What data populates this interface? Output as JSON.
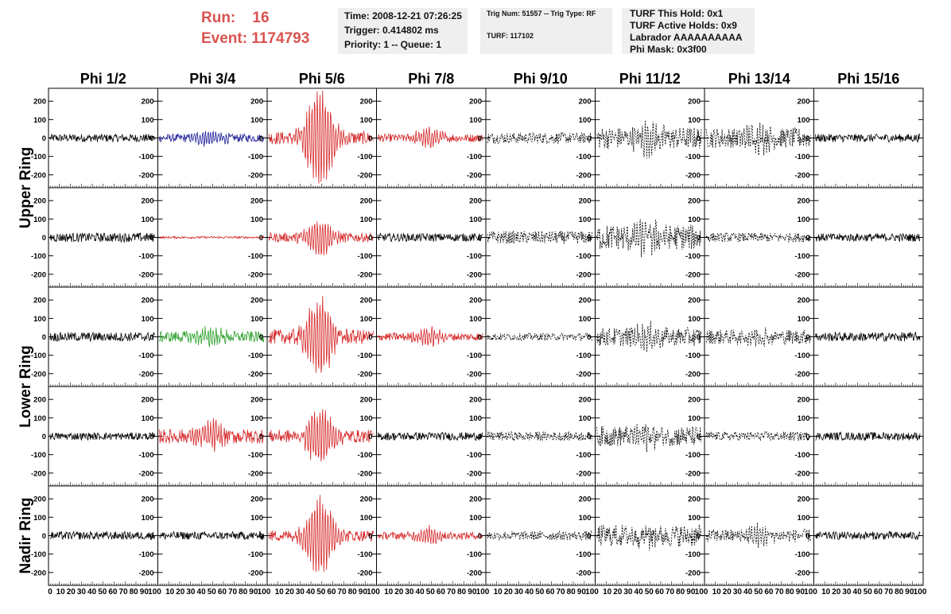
{
  "header": {
    "run_label": "Run:    16",
    "event_label": "Event: 1174793"
  },
  "info_box_1": {
    "time": "Time: 2008-12-21 07:26:25",
    "trigger": "Trigger: 0.414802 ms",
    "priority": "Priority: 1 -- Queue: 1"
  },
  "info_box_2": {
    "trig": "Trig Num: 51557 -- Trig Type: RF",
    "turf": "TURF: 117102"
  },
  "info_box_3": {
    "hold": "TURF This Hold: 0x1",
    "active": "TURF Active Holds: 0x9",
    "labrador": "Labrador AAAAAAAAAA",
    "mask": "Phi Mask: 0x3f00"
  },
  "chart_data": {
    "type": "line",
    "columns": [
      "Phi 1/2",
      "Phi 3/4",
      "Phi 5/6",
      "Phi 7/8",
      "Phi 9/10",
      "Phi 11/12",
      "Phi 13/14",
      "Phi 15/16"
    ],
    "row_groups": [
      "Upper Ring",
      "Lower Ring",
      "Nadir Ring"
    ],
    "rows": 5,
    "ylim": [
      -270,
      270
    ],
    "yticks": [
      -200,
      -100,
      0,
      100,
      200
    ],
    "xlim": [
      0,
      100
    ],
    "xtick_labels": [
      "0",
      "10",
      "20",
      "30",
      "40",
      "50",
      "60",
      "70",
      "80",
      "90",
      "100"
    ],
    "colors": {
      "black": "#000000",
      "red": "#d62728",
      "blue": "#1f1f9a",
      "green": "#2ca02c"
    },
    "panels": [
      [
        {
          "color": "black",
          "amp": 22,
          "style": "solid",
          "burst": 0
        },
        {
          "color": "blue",
          "amp": 22,
          "style": "solid",
          "burst": 40
        },
        {
          "color": "red",
          "amp": 35,
          "style": "solid",
          "burst": 250
        },
        {
          "color": "red",
          "amp": 22,
          "style": "solid",
          "burst": 45
        },
        {
          "color": "black",
          "amp": 30,
          "style": "dashed",
          "burst": 0
        },
        {
          "color": "black",
          "amp": 60,
          "style": "dashed",
          "burst": 60
        },
        {
          "color": "black",
          "amp": 55,
          "style": "dashed",
          "burst": 50
        },
        {
          "color": "black",
          "amp": 22,
          "style": "solid",
          "burst": 0
        }
      ],
      [
        {
          "color": "black",
          "amp": 25,
          "style": "solid",
          "burst": 0
        },
        {
          "color": "red",
          "amp": 6,
          "style": "solid",
          "burst": 0
        },
        {
          "color": "red",
          "amp": 25,
          "style": "solid",
          "burst": 90
        },
        {
          "color": "black",
          "amp": 22,
          "style": "solid",
          "burst": 0
        },
        {
          "color": "black",
          "amp": 35,
          "style": "dashed",
          "burst": 0
        },
        {
          "color": "black",
          "amp": 70,
          "style": "dashed",
          "burst": 50
        },
        {
          "color": "black",
          "amp": 25,
          "style": "dashed",
          "burst": 0
        },
        {
          "color": "black",
          "amp": 22,
          "style": "solid",
          "burst": 0
        }
      ],
      [
        {
          "color": "black",
          "amp": 25,
          "style": "solid",
          "burst": 0
        },
        {
          "color": "green",
          "amp": 30,
          "style": "solid",
          "burst": 40
        },
        {
          "color": "red",
          "amp": 40,
          "style": "solid",
          "burst": 200
        },
        {
          "color": "red",
          "amp": 22,
          "style": "solid",
          "burst": 40
        },
        {
          "color": "black",
          "amp": 20,
          "style": "dashed",
          "burst": 0
        },
        {
          "color": "black",
          "amp": 50,
          "style": "dashed",
          "burst": 40
        },
        {
          "color": "black",
          "amp": 40,
          "style": "dashed",
          "burst": 40
        },
        {
          "color": "black",
          "amp": 25,
          "style": "solid",
          "burst": 0
        }
      ],
      [
        {
          "color": "black",
          "amp": 20,
          "style": "solid",
          "burst": 0
        },
        {
          "color": "red",
          "amp": 40,
          "style": "solid",
          "burst": 70
        },
        {
          "color": "red",
          "amp": 35,
          "style": "solid",
          "burst": 140
        },
        {
          "color": "black",
          "amp": 22,
          "style": "solid",
          "burst": 0
        },
        {
          "color": "black",
          "amp": 25,
          "style": "dashed",
          "burst": 0
        },
        {
          "color": "black",
          "amp": 55,
          "style": "dashed",
          "burst": 40
        },
        {
          "color": "black",
          "amp": 25,
          "style": "dashed",
          "burst": 0
        },
        {
          "color": "black",
          "amp": 22,
          "style": "solid",
          "burst": 0
        }
      ],
      [
        {
          "color": "black",
          "amp": 22,
          "style": "solid",
          "burst": 0
        },
        {
          "color": "black",
          "amp": 22,
          "style": "solid",
          "burst": 0
        },
        {
          "color": "red",
          "amp": 30,
          "style": "solid",
          "burst": 200
        },
        {
          "color": "red",
          "amp": 20,
          "style": "solid",
          "burst": 40
        },
        {
          "color": "black",
          "amp": 25,
          "style": "dashed",
          "burst": 0
        },
        {
          "color": "black",
          "amp": 60,
          "style": "dashed",
          "burst": 40
        },
        {
          "color": "black",
          "amp": 35,
          "style": "dashed",
          "burst": 40
        },
        {
          "color": "black",
          "amp": 22,
          "style": "solid",
          "burst": 0
        }
      ]
    ]
  }
}
